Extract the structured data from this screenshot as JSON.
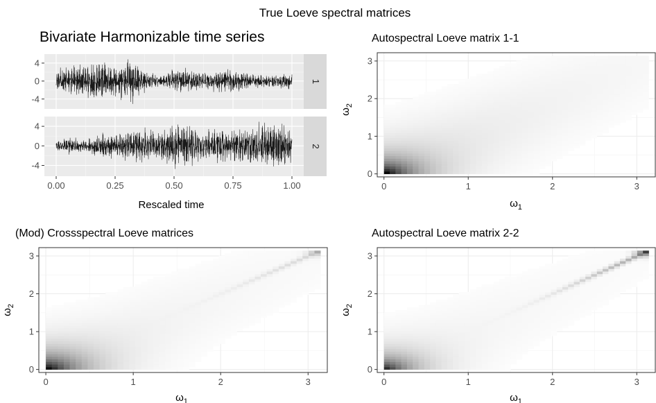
{
  "title": "True Loeve spectral matrices",
  "chart_data": [
    {
      "type": "line",
      "title": "Bivariate Harmonizable time series",
      "xlabel": "Rescaled time",
      "ylabel": "",
      "xlim": [
        -0.05,
        1.05
      ],
      "x_ticks": [
        "0.00",
        "0.25",
        "0.50",
        "0.75",
        "1.00"
      ],
      "grid": true,
      "facets": [
        {
          "strip": "1",
          "ylim": [
            -6.2,
            6.0
          ],
          "y_ticks": [
            "4",
            "0",
            "-4"
          ],
          "amplitude_envelope": [
            2.2,
            3.0,
            3.6,
            4.2,
            3.4,
            4.6,
            2.2,
            1.0,
            2.6,
            2.6,
            1.6,
            2.4,
            2.2,
            1.8,
            1.2,
            1.6,
            1.6
          ]
        },
        {
          "strip": "2",
          "ylim": [
            -6.2,
            6.0
          ],
          "y_ticks": [
            "4",
            "0",
            "-4"
          ],
          "amplitude_envelope": [
            0.9,
            1.8,
            1.0,
            2.4,
            2.2,
            2.8,
            3.4,
            2.6,
            4.4,
            4.0,
            2.8,
            3.2,
            3.0,
            3.6,
            4.4,
            4.6,
            3.2
          ]
        }
      ]
    },
    {
      "type": "heatmap",
      "title": "Autospectral Loeve matrix 1-1",
      "xlabel": "ω1",
      "ylabel": "ω2",
      "xlim": [
        -0.08,
        3.22
      ],
      "ylim": [
        -0.08,
        3.22
      ],
      "x_ticks": [
        "0",
        "1",
        "2",
        "3"
      ],
      "y_ticks": [
        "0",
        "1",
        "2",
        "3"
      ],
      "intensity_model": {
        "corner_peak": 1.0,
        "corner_decay": 0.3,
        "diagonal_weight": 0.12,
        "diagonal_width": 0.9,
        "top_corner_peak": 0.0
      }
    },
    {
      "type": "heatmap",
      "title": "(Mod) Crossspectral Loeve matrices",
      "xlabel": "ω1",
      "ylabel": "ω2",
      "xlim": [
        -0.08,
        3.22
      ],
      "ylim": [
        -0.08,
        3.22
      ],
      "x_ticks": [
        "0",
        "1",
        "2",
        "3"
      ],
      "y_ticks": [
        "0",
        "1",
        "2",
        "3"
      ],
      "intensity_model": {
        "corner_peak": 1.0,
        "corner_decay": 0.32,
        "diagonal_weight": 0.08,
        "diagonal_width": 0.8,
        "top_corner_peak": 0.35
      }
    },
    {
      "type": "heatmap",
      "title": "Autospectral Loeve matrix 2-2",
      "xlabel": "ω1",
      "ylabel": "ω2",
      "xlim": [
        -0.08,
        3.22
      ],
      "ylim": [
        -0.08,
        3.22
      ],
      "x_ticks": [
        "0",
        "1",
        "2",
        "3"
      ],
      "y_ticks": [
        "0",
        "1",
        "2",
        "3"
      ],
      "intensity_model": {
        "corner_peak": 0.9,
        "corner_decay": 0.28,
        "diagonal_weight": 0.06,
        "diagonal_width": 0.8,
        "top_corner_peak": 0.85
      }
    }
  ]
}
